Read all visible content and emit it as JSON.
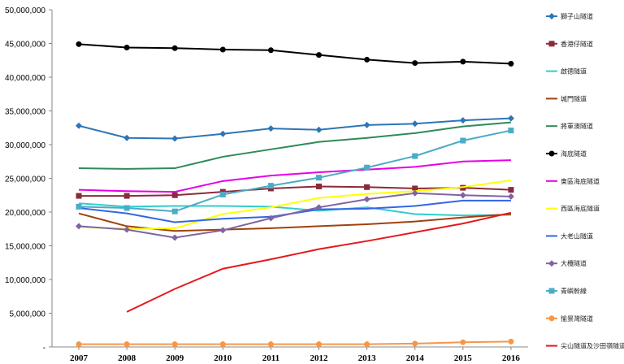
{
  "chart_data": {
    "type": "line",
    "categories": [
      "2007",
      "2008",
      "2009",
      "2010",
      "2011",
      "2012",
      "2013",
      "2014",
      "2015",
      "2016"
    ],
    "ylim": [
      0,
      50000000
    ],
    "yticks": [
      "-",
      "5,000,000",
      "10,000,000",
      "15,000,000",
      "20,000,000",
      "25,000,000",
      "30,000,000",
      "35,000,000",
      "40,000,000",
      "45,000,000",
      "50,000,000"
    ],
    "grid": false,
    "legend_position": "right",
    "series": [
      {
        "name": "獅子山隧道",
        "color": "#2e75b6",
        "marker": "diamond",
        "values": [
          32800000,
          31000000,
          30900000,
          31600000,
          32400000,
          32200000,
          32900000,
          33100000,
          33600000,
          33900000
        ]
      },
      {
        "name": "香港仔隧道",
        "color": "#8b2b3a",
        "marker": "square",
        "values": [
          22400000,
          22400000,
          22500000,
          23000000,
          23500000,
          23800000,
          23700000,
          23500000,
          23600000,
          23300000
        ]
      },
      {
        "name": "啟德隧道",
        "color": "#33cccc",
        "marker": "none",
        "values": [
          21300000,
          20800000,
          20900000,
          20900000,
          20800000,
          20200000,
          20700000,
          19700000,
          19500000,
          19600000
        ]
      },
      {
        "name": "城門隧道",
        "color": "#a0410d",
        "marker": "none",
        "values": [
          19800000,
          17900000,
          17200000,
          17400000,
          17600000,
          17900000,
          18200000,
          18600000,
          19200000,
          19700000
        ]
      },
      {
        "name": "將軍澳隧道",
        "color": "#2e8b57",
        "marker": "none",
        "values": [
          26500000,
          26400000,
          26500000,
          28200000,
          29300000,
          30400000,
          31000000,
          31700000,
          32700000,
          33300000
        ]
      },
      {
        "name": "海底隧道",
        "color": "#000000",
        "marker": "circle",
        "values": [
          44900000,
          44400000,
          44300000,
          44100000,
          44000000,
          43300000,
          42600000,
          42100000,
          42300000,
          42000000
        ]
      },
      {
        "name": "東區海底隧道",
        "color": "#e600e6",
        "marker": "none",
        "values": [
          23300000,
          23100000,
          23000000,
          24600000,
          25400000,
          25900000,
          26300000,
          26700000,
          27500000,
          27700000
        ]
      },
      {
        "name": "西區海底隧道",
        "color": "#ffff00",
        "marker": "none",
        "values": [
          17800000,
          17500000,
          17600000,
          19700000,
          20700000,
          22100000,
          22700000,
          23100000,
          23700000,
          24700000
        ]
      },
      {
        "name": "大老山隧道",
        "color": "#3366e6",
        "marker": "none",
        "values": [
          20600000,
          19800000,
          18500000,
          19000000,
          19300000,
          20400000,
          20500000,
          20900000,
          21700000,
          21700000
        ]
      },
      {
        "name": "大欖隧道",
        "color": "#8064a2",
        "marker": "diamond",
        "values": [
          17900000,
          17400000,
          16200000,
          17300000,
          19100000,
          20700000,
          21900000,
          22800000,
          22500000,
          22300000
        ]
      },
      {
        "name": "青嶼幹線",
        "color": "#4bacc6",
        "marker": "square",
        "values": [
          20800000,
          20600000,
          20100000,
          22600000,
          23900000,
          25100000,
          26600000,
          28300000,
          30600000,
          32100000
        ]
      },
      {
        "name": "愉景灣隧道",
        "color": "#f79646",
        "marker": "circle",
        "values": [
          400000,
          400000,
          400000,
          400000,
          400000,
          400000,
          400000,
          500000,
          700000,
          800000
        ]
      },
      {
        "name": "尖山隧道及沙田嶺隧道",
        "color": "#e31a1c",
        "marker": "none",
        "values": [
          null,
          5200000,
          8600000,
          11600000,
          13000000,
          14500000,
          15700000,
          17000000,
          18300000,
          19900000
        ]
      }
    ]
  }
}
